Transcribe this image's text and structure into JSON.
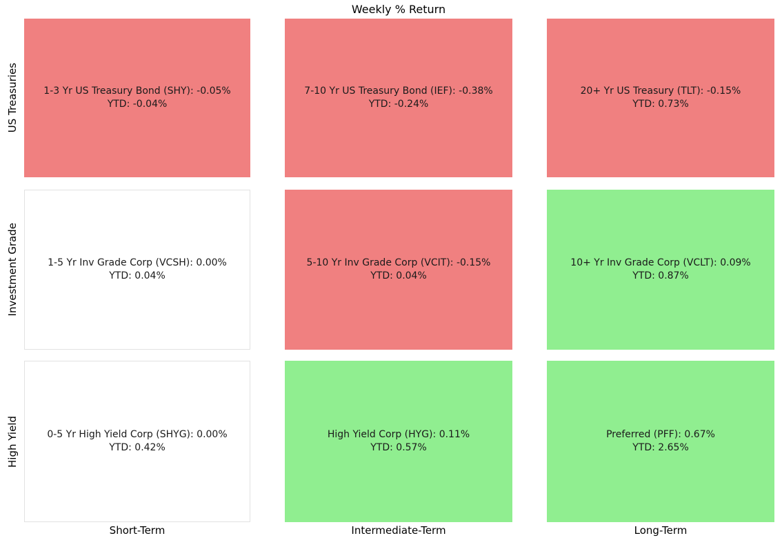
{
  "title": "Weekly % Return",
  "rows": [
    "US Treasuries",
    "Investment Grade",
    "High Yield"
  ],
  "columns": [
    "Short-Term",
    "Intermediate-Term",
    "Long-Term"
  ],
  "colors": {
    "negative": "#f08080",
    "positive": "#90ee90",
    "zero": "#ffffff",
    "cell_border": "#e2e2e2",
    "text": "#1a1a1a"
  },
  "cells": [
    {
      "row": "US Treasuries",
      "column": "Short-Term",
      "line1": "1-3 Yr US Treasury Bond (SHY): -0.05%",
      "line2": "YTD: -0.04%",
      "state": "negative"
    },
    {
      "row": "US Treasuries",
      "column": "Intermediate-Term",
      "line1": "7-10 Yr US Treasury Bond (IEF): -0.38%",
      "line2": "YTD: -0.24%",
      "state": "negative"
    },
    {
      "row": "US Treasuries",
      "column": "Long-Term",
      "line1": "20+ Yr US Treasury (TLT): -0.15%",
      "line2": "YTD: 0.73%",
      "state": "negative"
    },
    {
      "row": "Investment Grade",
      "column": "Short-Term",
      "line1": "1-5 Yr Inv Grade Corp (VCSH): 0.00%",
      "line2": "YTD: 0.04%",
      "state": "zero"
    },
    {
      "row": "Investment Grade",
      "column": "Intermediate-Term",
      "line1": "5-10 Yr Inv Grade Corp (VCIT): -0.15%",
      "line2": "YTD: 0.04%",
      "state": "negative"
    },
    {
      "row": "Investment Grade",
      "column": "Long-Term",
      "line1": "10+ Yr Inv Grade Corp (VCLT): 0.09%",
      "line2": "YTD: 0.87%",
      "state": "positive"
    },
    {
      "row": "High Yield",
      "column": "Short-Term",
      "line1": "0-5 Yr High Yield Corp (SHYG): 0.00%",
      "line2": "YTD: 0.42%",
      "state": "zero"
    },
    {
      "row": "High Yield",
      "column": "Intermediate-Term",
      "line1": "High Yield Corp (HYG): 0.11%",
      "line2": "YTD: 0.57%",
      "state": "positive"
    },
    {
      "row": "High Yield",
      "column": "Long-Term",
      "line1": "Preferred (PFF): 0.67%",
      "line2": "YTD: 2.65%",
      "state": "positive"
    }
  ],
  "chart_data": {
    "type": "heatmap",
    "title": "Weekly % Return",
    "rows": [
      "US Treasuries",
      "Investment Grade",
      "High Yield"
    ],
    "columns": [
      "Short-Term",
      "Intermediate-Term",
      "Long-Term"
    ],
    "series": [
      {
        "row": "US Treasuries",
        "cells": [
          {
            "name": "1-3 Yr US Treasury Bond",
            "ticker": "SHY",
            "weekly_pct": -0.05,
            "ytd_pct": -0.04
          },
          {
            "name": "7-10 Yr US Treasury Bond",
            "ticker": "IEF",
            "weekly_pct": -0.38,
            "ytd_pct": -0.24
          },
          {
            "name": "20+ Yr US Treasury",
            "ticker": "TLT",
            "weekly_pct": -0.15,
            "ytd_pct": 0.73
          }
        ]
      },
      {
        "row": "Investment Grade",
        "cells": [
          {
            "name": "1-5 Yr Inv Grade Corp",
            "ticker": "VCSH",
            "weekly_pct": 0.0,
            "ytd_pct": 0.04
          },
          {
            "name": "5-10 Yr Inv Grade Corp",
            "ticker": "VCIT",
            "weekly_pct": -0.15,
            "ytd_pct": 0.04
          },
          {
            "name": "10+ Yr Inv Grade Corp",
            "ticker": "VCLT",
            "weekly_pct": 0.09,
            "ytd_pct": 0.87
          }
        ]
      },
      {
        "row": "High Yield",
        "cells": [
          {
            "name": "0-5 Yr High Yield Corp",
            "ticker": "SHYG",
            "weekly_pct": 0.0,
            "ytd_pct": 0.42
          },
          {
            "name": "High Yield Corp",
            "ticker": "HYG",
            "weekly_pct": 0.11,
            "ytd_pct": 0.57
          },
          {
            "name": "Preferred",
            "ticker": "PFF",
            "weekly_pct": 0.67,
            "ytd_pct": 2.65
          }
        ]
      }
    ],
    "color_rule": "weekly_pct < 0 -> #f08080 (red); weekly_pct > 0 -> #90ee90 (green); weekly_pct = 0 -> #ffffff (white)",
    "legend": "none",
    "grid": "off"
  }
}
